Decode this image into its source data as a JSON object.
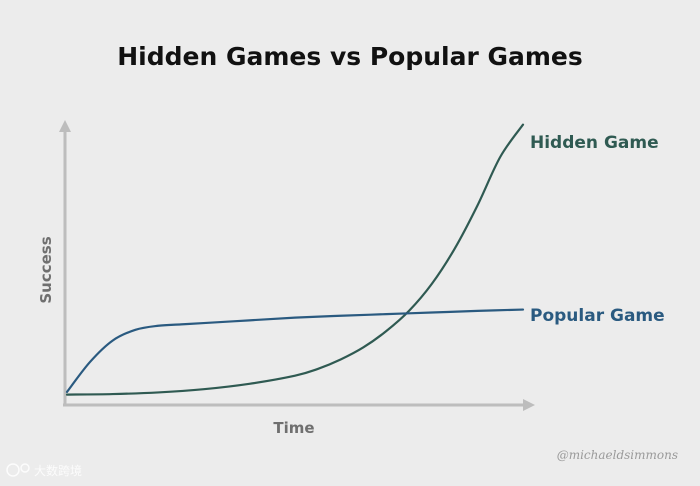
{
  "chart_data": {
    "type": "line",
    "title": "Hidden Games vs Popular Games",
    "xlabel": "Time",
    "ylabel": "Success",
    "xlim": [
      0,
      10
    ],
    "ylim": [
      0,
      10
    ],
    "grid": false,
    "legend": "inline-right",
    "series": [
      {
        "name": "Hidden Game",
        "color": "#2f5a52",
        "x": [
          0,
          1,
          2,
          3,
          4,
          5,
          5.5,
          6,
          6.5,
          7,
          7.5,
          8,
          8.5,
          9,
          9.5,
          10
        ],
        "y": [
          0.2,
          0.22,
          0.28,
          0.4,
          0.6,
          0.9,
          1.15,
          1.5,
          1.95,
          2.55,
          3.3,
          4.3,
          5.6,
          7.2,
          9.0,
          10.2
        ]
      },
      {
        "name": "Popular Game",
        "color": "#2a5a80",
        "x": [
          0,
          0.5,
          1,
          1.5,
          2,
          2.5,
          3,
          4,
          5,
          6,
          7,
          8,
          9,
          10
        ],
        "y": [
          0.3,
          1.4,
          2.2,
          2.6,
          2.75,
          2.8,
          2.85,
          2.95,
          3.05,
          3.12,
          3.18,
          3.24,
          3.3,
          3.35
        ]
      }
    ]
  },
  "credit": "@michaeldsimmons",
  "watermark": "大数跨境"
}
